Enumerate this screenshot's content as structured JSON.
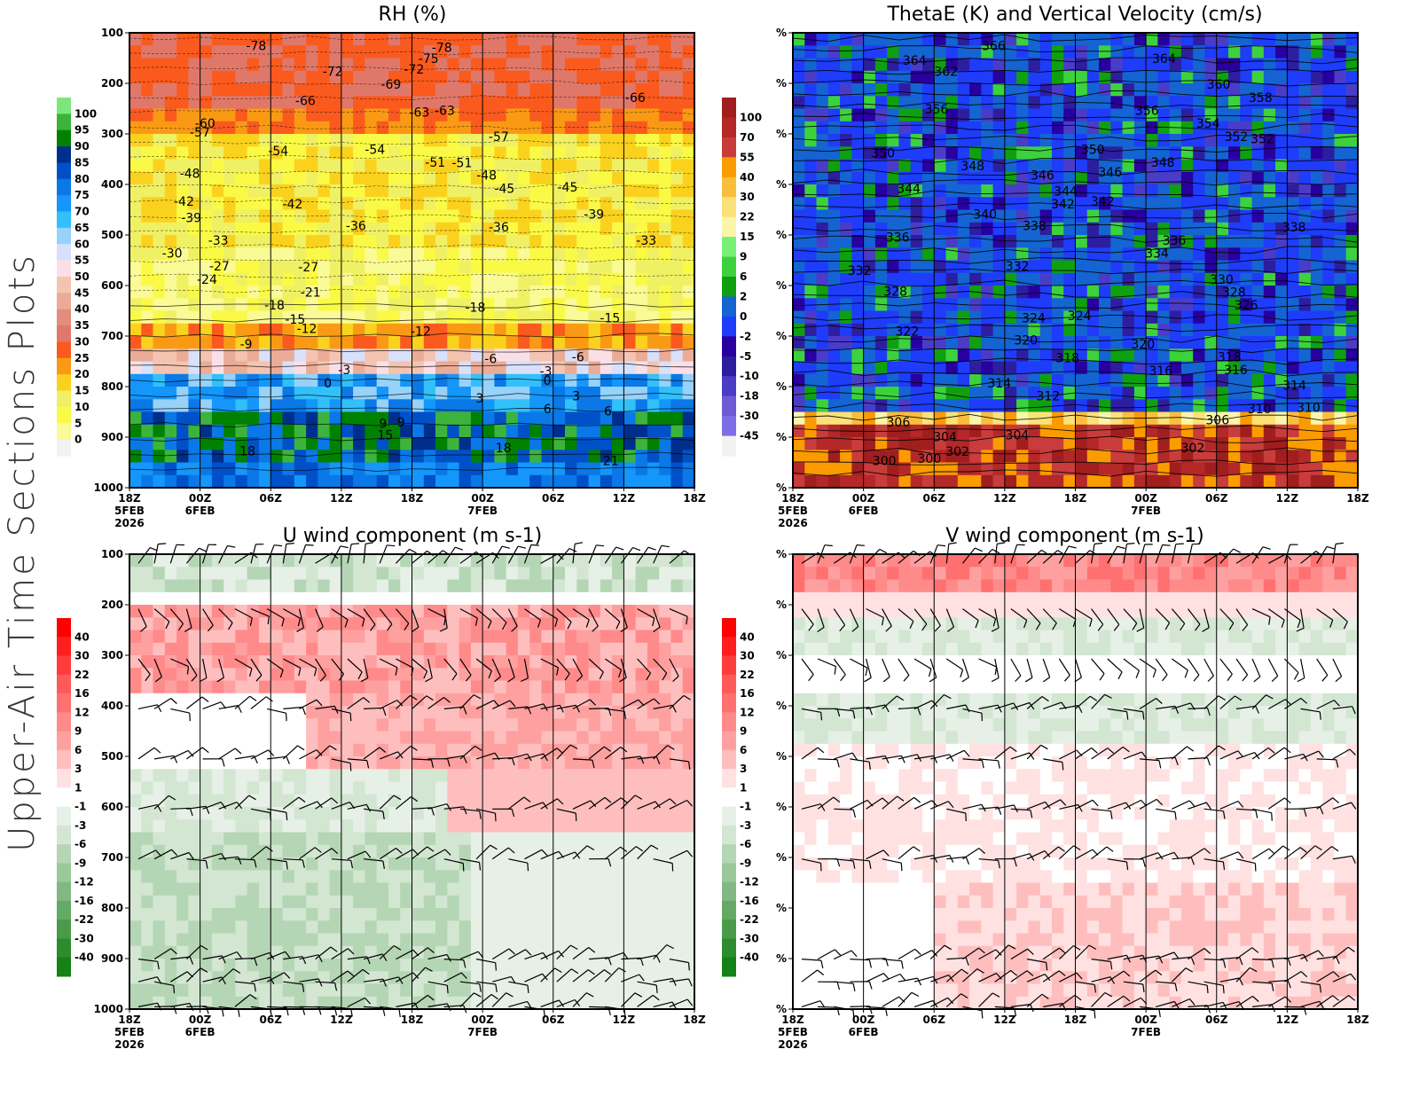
{
  "page": {
    "side_title": "Upper-Air Time Sections Plots"
  },
  "chart_data": [
    {
      "id": "rh",
      "type": "heatmap",
      "title": "RH (%)",
      "x_ticks": [
        "18Z",
        "00Z",
        "06Z",
        "12Z",
        "18Z",
        "00Z",
        "06Z",
        "12Z",
        "18Z"
      ],
      "x_sublabels": [
        [
          "5FEB",
          "2026"
        ],
        [
          "6FEB"
        ],
        [],
        [],
        [],
        [
          "7FEB"
        ],
        [],
        [],
        []
      ],
      "y_ticks": [
        "100",
        "200",
        "300",
        "400",
        "500",
        "600",
        "700",
        "800",
        "900",
        "1000"
      ],
      "ylim": [
        100,
        1000
      ],
      "colorbar": {
        "levels": [
          "100",
          "95",
          "90",
          "85",
          "80",
          "75",
          "70",
          "65",
          "60",
          "55",
          "50",
          "45",
          "40",
          "35",
          "30",
          "25",
          "20",
          "15",
          "10",
          "5",
          "0"
        ],
        "colors": [
          "#7ce67c",
          "#3cb43c",
          "#008200",
          "#002e8c",
          "#0050c8",
          "#0a78e6",
          "#1496fa",
          "#32c0fa",
          "#96d2fa",
          "#d8e0fa",
          "#fae0e6",
          "#f4c4b0",
          "#eaac96",
          "#e48c7e",
          "#e0786a",
          "#fa5a1e",
          "#fa9a14",
          "#fad21e",
          "#f0f064",
          "#fafa46",
          "#fafa96",
          "#f2f2f2"
        ]
      },
      "contour_labels_temperature_c": [
        "-78",
        "-75",
        "-72",
        "-69",
        "-66",
        "-63",
        "-60",
        "-57",
        "-54",
        "-51",
        "-48",
        "-45",
        "-42",
        "-39",
        "-36",
        "-33",
        "-30",
        "-27",
        "-24",
        "-21",
        "-18",
        "-15",
        "-12",
        "-9",
        "-6",
        "-3",
        "0",
        "3",
        "6",
        "9",
        "15",
        "18",
        "21"
      ]
    },
    {
      "id": "thetae",
      "type": "heatmap",
      "title": "ThetaE (K) and Vertical Velocity (cm/s)",
      "x_ticks": [
        "18Z",
        "00Z",
        "06Z",
        "12Z",
        "18Z",
        "00Z",
        "06Z",
        "12Z",
        "18Z"
      ],
      "x_sublabels": [
        [
          "5FEB",
          "2026"
        ],
        [
          "6FEB"
        ],
        [],
        [],
        [],
        [
          "7FEB"
        ],
        [],
        [],
        []
      ],
      "y_ticks": [
        "%",
        "%",
        "%",
        "%",
        "%",
        "%",
        "%",
        "%",
        "%",
        "%"
      ],
      "colorbar": {
        "levels": [
          "100",
          "70",
          "55",
          "40",
          "30",
          "22",
          "15",
          "9",
          "6",
          "2",
          "0",
          "-2",
          "-5",
          "-10",
          "-18",
          "-30",
          "-45"
        ],
        "colors": [
          "#a01e1e",
          "#b42828",
          "#c83c3c",
          "#fa9b00",
          "#fabe3c",
          "#fae178",
          "#faf5aa",
          "#78f078",
          "#3cd23c",
          "#0fa00f",
          "#1464d2",
          "#1e3cfa",
          "#2800a0",
          "#2d1ea0",
          "#4b3cc8",
          "#6e5ad2",
          "#7d6ee6",
          "#f2f2f2"
        ]
      },
      "contour_labels_thetae_k": [
        "366",
        "364",
        "362",
        "360",
        "358",
        "356",
        "354",
        "352",
        "350",
        "348",
        "346",
        "344",
        "342",
        "340",
        "338",
        "336",
        "334",
        "332",
        "330",
        "328",
        "326",
        "324",
        "322",
        "320",
        "318",
        "316",
        "314",
        "312",
        "310",
        "306",
        "304",
        "302",
        "300"
      ]
    },
    {
      "id": "uwind",
      "type": "heatmap",
      "title": "U wind component (m s-1)",
      "x_ticks": [
        "18Z",
        "00Z",
        "06Z",
        "12Z",
        "18Z",
        "00Z",
        "06Z",
        "12Z",
        "18Z"
      ],
      "x_sublabels": [
        [
          "5FEB",
          "2026"
        ],
        [
          "6FEB"
        ],
        [],
        [],
        [],
        [
          "7FEB"
        ],
        [],
        [],
        []
      ],
      "y_ticks": [
        "100",
        "200",
        "300",
        "400",
        "500",
        "600",
        "700",
        "800",
        "900",
        "1000"
      ],
      "ylim": [
        100,
        1000
      ],
      "colorbar": {
        "levels": [
          "40",
          "30",
          "22",
          "16",
          "12",
          "9",
          "6",
          "3",
          "1",
          "-1",
          "-3",
          "-6",
          "-9",
          "-12",
          "-16",
          "-22",
          "-30",
          "-40"
        ],
        "colors": [
          "#ff0000",
          "#ff1e1e",
          "#ff3c3c",
          "#ff5a5a",
          "#ff7070",
          "#ff8a8a",
          "#ffa0a0",
          "#ffbebe",
          "#ffe1e1",
          "#ffffff",
          "#e6f0e6",
          "#d2e6d2",
          "#b4d6b4",
          "#9ac89a",
          "#82b882",
          "#64aa64",
          "#4a9a4a",
          "#2e8c2e",
          "#148214"
        ]
      }
    },
    {
      "id": "vwind",
      "type": "heatmap",
      "title": "V wind component (m s-1)",
      "x_ticks": [
        "18Z",
        "00Z",
        "06Z",
        "12Z",
        "18Z",
        "00Z",
        "06Z",
        "12Z",
        "18Z"
      ],
      "x_sublabels": [
        [
          "5FEB",
          "2026"
        ],
        [
          "6FEB"
        ],
        [],
        [],
        [],
        [
          "7FEB"
        ],
        [],
        [],
        []
      ],
      "y_ticks": [
        "%",
        "%",
        "%",
        "%",
        "%",
        "%",
        "%",
        "%",
        "%",
        "%"
      ],
      "colorbar": {
        "levels": [
          "40",
          "30",
          "22",
          "16",
          "12",
          "9",
          "6",
          "3",
          "1",
          "-1",
          "-3",
          "-6",
          "-9",
          "-12",
          "-16",
          "-22",
          "-30",
          "-40"
        ],
        "colors": [
          "#ff0000",
          "#ff1e1e",
          "#ff3c3c",
          "#ff5a5a",
          "#ff7070",
          "#ff8a8a",
          "#ffa0a0",
          "#ffbebe",
          "#ffe1e1",
          "#ffffff",
          "#e6f0e6",
          "#d2e6d2",
          "#b4d6b4",
          "#9ac89a",
          "#82b882",
          "#64aa64",
          "#4a9a4a",
          "#2e8c2e",
          "#148214"
        ]
      }
    }
  ]
}
